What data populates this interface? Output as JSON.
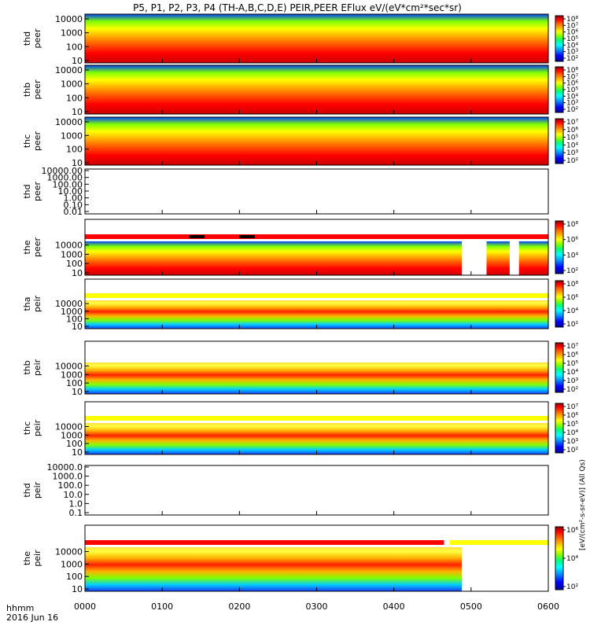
{
  "title": "P5, P1, P2, P3, P4 (TH-A,B,C,D,E) PEIR,PEER EFlux eV/(eV*cm²*sec*sr)",
  "colors": {
    "spectrogram_scale": [
      "#000099",
      "#0000ff",
      "#00a0ff",
      "#00ffff",
      "#00ff80",
      "#80ff00",
      "#ffff00",
      "#ffb000",
      "#ff6000",
      "#ff0000",
      "#cc0000",
      "#880000"
    ],
    "flag_red": "#ff0000",
    "flag_yellow": "#ffff00",
    "no_data": "#ffffff",
    "frame": "#000000"
  },
  "x_axis": {
    "range": [
      "0000",
      "0600"
    ],
    "ticks": [
      "0000",
      "0100",
      "0200",
      "0300",
      "0400",
      "0500",
      "0600"
    ],
    "format_label": "hhmm",
    "date_label": "2016 Jun 16"
  },
  "colorbar_label": "[eV/(cm²-s-sr-eV)] (All Qs)",
  "chart_data": [
    {
      "type": "heatmap",
      "ylabel": "thd peer",
      "y_ticks": [
        "10",
        "100",
        "1000",
        "10000"
      ],
      "colorbar_ticks": [
        "10⁸",
        "10⁷",
        "10⁶",
        "10⁵",
        "10⁴",
        "10³",
        "10²"
      ],
      "has_data": true,
      "empty_spans": [],
      "flag_bar": {
        "red_until": null,
        "yellow_after": null,
        "black_marks": []
      }
    },
    {
      "type": "heatmap",
      "ylabel": "thb peer",
      "y_ticks": [
        "10",
        "100",
        "1000",
        "10000"
      ],
      "colorbar_ticks": [
        "10⁸",
        "10⁷",
        "10⁶",
        "10⁵",
        "10⁴",
        "10³",
        "10²"
      ],
      "has_data": true,
      "empty_spans": [],
      "flag_bar": {
        "red_until": null,
        "yellow_after": null,
        "black_marks": []
      }
    },
    {
      "type": "heatmap",
      "ylabel": "thc peer",
      "y_ticks": [
        "10",
        "100",
        "1000",
        "10000"
      ],
      "colorbar_ticks": [
        "10⁷",
        "10⁶",
        "10⁵",
        "10⁴",
        "10³",
        "10²"
      ],
      "has_data": true,
      "empty_spans": [],
      "flag_bar": {
        "red_until": null,
        "yellow_after": null,
        "black_marks": []
      }
    },
    {
      "type": "heatmap",
      "ylabel": "thd peer",
      "y_ticks": [
        "0.01",
        "0.10",
        "1.00",
        "10.00",
        "100.00",
        "1000.00",
        "10000.00"
      ],
      "colorbar_ticks": [],
      "has_data": false,
      "empty_spans": [],
      "flag_bar": {
        "red_until": null,
        "yellow_after": null,
        "black_marks": []
      }
    },
    {
      "type": "heatmap",
      "ylabel": "the peer",
      "y_ticks": [
        "10",
        "100",
        "1000",
        "10000"
      ],
      "colorbar_ticks": [
        "10⁸",
        "10⁶",
        "10⁴",
        "10²"
      ],
      "has_data": true,
      "empty_spans": [
        [
          4.88,
          5.2
        ],
        [
          5.5,
          5.62
        ]
      ],
      "flag_bar": {
        "red_until": 6.0,
        "yellow_after": null,
        "black_marks": [
          [
            1.35,
            1.55
          ],
          [
            2.0,
            2.2
          ]
        ]
      }
    },
    {
      "type": "heatmap",
      "ylabel": "tha peir",
      "y_ticks": [
        "10",
        "100",
        "1000",
        "10000"
      ],
      "colorbar_ticks": [
        "10⁸",
        "10⁶",
        "10⁴",
        "10²"
      ],
      "has_data": true,
      "empty_spans": [],
      "flag_bar": {
        "red_until": null,
        "yellow_after": 0.0,
        "black_marks": []
      }
    },
    {
      "type": "heatmap",
      "ylabel": "thb peir",
      "y_ticks": [
        "10",
        "100",
        "1000",
        "10000"
      ],
      "colorbar_ticks": [
        "10⁷",
        "10⁶",
        "10⁵",
        "10⁴",
        "10³",
        "10²"
      ],
      "has_data": true,
      "empty_spans": [],
      "flag_bar": {
        "red_until": null,
        "yellow_after": null,
        "black_marks": []
      }
    },
    {
      "type": "heatmap",
      "ylabel": "thc peir",
      "y_ticks": [
        "10",
        "100",
        "1000",
        "10000"
      ],
      "colorbar_ticks": [
        "10⁷",
        "10⁶",
        "10⁵",
        "10⁴",
        "10³",
        "10²"
      ],
      "has_data": true,
      "empty_spans": [],
      "flag_bar": {
        "red_until": null,
        "yellow_after": 0.0,
        "black_marks": []
      }
    },
    {
      "type": "heatmap",
      "ylabel": "thd peir",
      "y_ticks": [
        "0.1",
        "1.0",
        "10.0",
        "100.0",
        "1000.0",
        "10000.0"
      ],
      "colorbar_ticks": [],
      "has_data": false,
      "empty_spans": [],
      "flag_bar": {
        "red_until": null,
        "yellow_after": null,
        "black_marks": []
      }
    },
    {
      "type": "heatmap",
      "ylabel": "the peir",
      "y_ticks": [
        "10",
        "100",
        "1000",
        "10000"
      ],
      "colorbar_ticks": [
        "10⁶",
        "10⁴",
        "10²"
      ],
      "has_data": true,
      "empty_spans": [
        [
          4.88,
          6.0
        ]
      ],
      "flag_bar": {
        "red_until": 4.65,
        "yellow_after": 4.72,
        "black_marks": []
      }
    }
  ]
}
